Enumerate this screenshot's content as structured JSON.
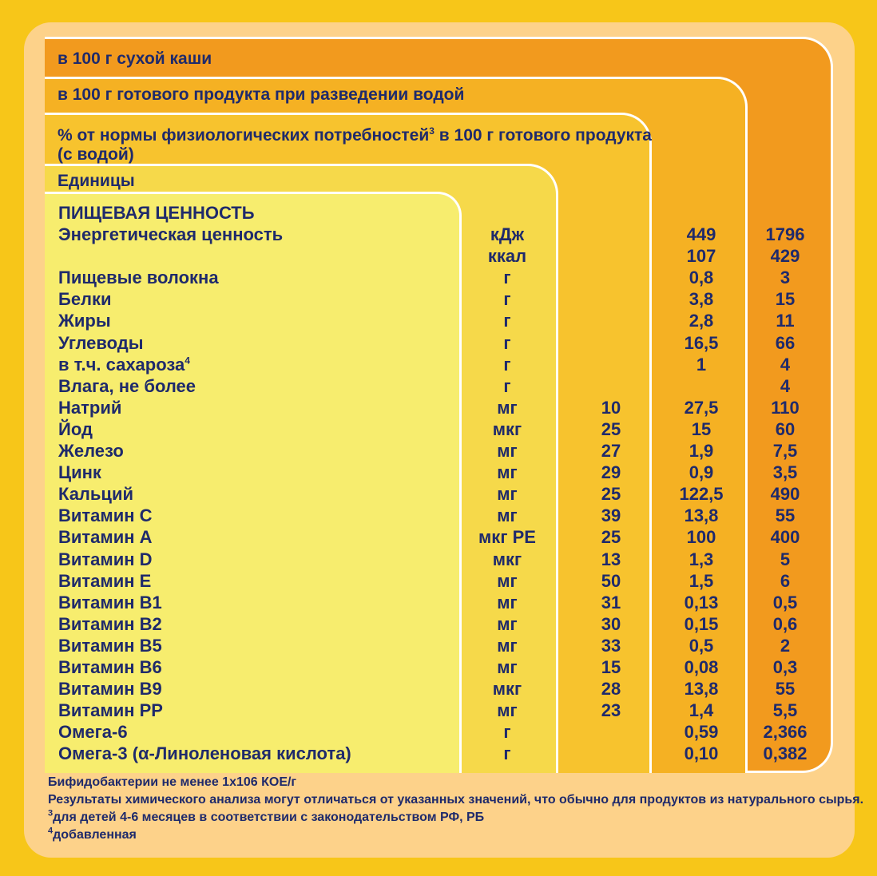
{
  "headers": {
    "dry": "в 100 г сухой каши",
    "prepared": "в 100 г готового продукта при разведении водой",
    "percent_line1": "% от нормы физиологических потребностей",
    "percent_sup": "3",
    "percent_line1_tail": " в 100 г готового продукта",
    "percent_line2": "(с водой)",
    "units": "Единицы"
  },
  "section_title": "ПИЩЕВАЯ ЦЕННОСТЬ",
  "rows": [
    {
      "name": "Энергетическая ценность",
      "sup": "",
      "unit": "кДж",
      "pct": "",
      "prep": "449",
      "dry": "1796"
    },
    {
      "name": "",
      "sup": "",
      "unit": "ккал",
      "pct": "",
      "prep": "107",
      "dry": "429"
    },
    {
      "name": "Пищевые волокна",
      "sup": "",
      "unit": "г",
      "pct": "",
      "prep": "0,8",
      "dry": "3"
    },
    {
      "name": "Белки",
      "sup": "",
      "unit": "г",
      "pct": "",
      "prep": "3,8",
      "dry": "15"
    },
    {
      "name": "Жиры",
      "sup": "",
      "unit": "г",
      "pct": "",
      "prep": "2,8",
      "dry": "11"
    },
    {
      "name": "Углеводы",
      "sup": "",
      "unit": "г",
      "pct": "",
      "prep": "16,5",
      "dry": "66"
    },
    {
      "name": "в т.ч. сахароза",
      "sup": "4",
      "unit": "г",
      "pct": "",
      "prep": "1",
      "dry": "4"
    },
    {
      "name": "Влага, не более",
      "sup": "",
      "unit": "г",
      "pct": "",
      "prep": "",
      "dry": "4"
    },
    {
      "name": "Натрий",
      "sup": "",
      "unit": "мг",
      "pct": "10",
      "prep": "27,5",
      "dry": "110"
    },
    {
      "name": "Йод",
      "sup": "",
      "unit": "мкг",
      "pct": "25",
      "prep": "15",
      "dry": "60"
    },
    {
      "name": "Железо",
      "sup": "",
      "unit": "мг",
      "pct": "27",
      "prep": "1,9",
      "dry": "7,5"
    },
    {
      "name": "Цинк",
      "sup": "",
      "unit": "мг",
      "pct": "29",
      "prep": "0,9",
      "dry": "3,5"
    },
    {
      "name": "Кальций",
      "sup": "",
      "unit": "мг",
      "pct": "25",
      "prep": "122,5",
      "dry": "490"
    },
    {
      "name": "Витамин  С",
      "sup": "",
      "unit": "мг",
      "pct": "39",
      "prep": "13,8",
      "dry": "55"
    },
    {
      "name": "Витамин  А",
      "sup": "",
      "unit": "мкг РЕ",
      "pct": "25",
      "prep": "100",
      "dry": "400"
    },
    {
      "name": "Витамин  D",
      "sup": "",
      "unit": "мкг",
      "pct": "13",
      "prep": "1,3",
      "dry": "5"
    },
    {
      "name": "Витамин  Е",
      "sup": "",
      "unit": "мг",
      "pct": "50",
      "prep": "1,5",
      "dry": "6"
    },
    {
      "name": "Витамин  В1",
      "sup": "",
      "unit": "мг",
      "pct": "31",
      "prep": "0,13",
      "dry": "0,5"
    },
    {
      "name": "Витамин  В2",
      "sup": "",
      "unit": "мг",
      "pct": "30",
      "prep": "0,15",
      "dry": "0,6"
    },
    {
      "name": "Витамин  В5",
      "sup": "",
      "unit": "мг",
      "pct": "33",
      "prep": "0,5",
      "dry": "2"
    },
    {
      "name": "Витамин  В6",
      "sup": "",
      "unit": "мг",
      "pct": "15",
      "prep": "0,08",
      "dry": "0,3"
    },
    {
      "name": "Витамин  В9",
      "sup": "",
      "unit": "мкг",
      "pct": "28",
      "prep": "13,8",
      "dry": "55"
    },
    {
      "name": "Витамин  РР",
      "sup": "",
      "unit": "мг",
      "pct": "23",
      "prep": "1,4",
      "dry": "5,5"
    },
    {
      "name": "Омега-6",
      "sup": "",
      "unit": "г",
      "pct": "",
      "prep": "0,59",
      "dry": "2,366"
    },
    {
      "name": "Омега-3 (α-Линоленовая кислота)",
      "sup": "",
      "unit": "г",
      "pct": "",
      "prep": "0,10",
      "dry": "0,382"
    }
  ],
  "footnotes": {
    "bifido": "Бифидобактерии не менее 1х106 КОЕ/г",
    "disclaimer": "Результаты химического анализа могут отличаться от указанных значений, что обычно для продуктов из натурального сырья.",
    "note3_mark": "3",
    "note3": "для детей 4-6 месяцев в соответствии с законодательством РФ, РБ",
    "note4_mark": "4",
    "note4": "добавленная"
  }
}
